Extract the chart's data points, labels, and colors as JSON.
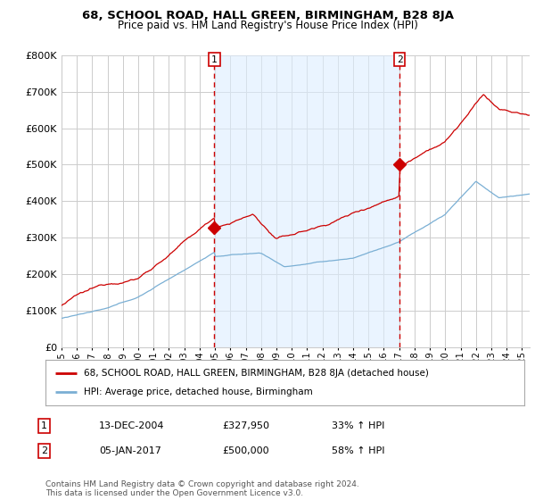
{
  "title": "68, SCHOOL ROAD, HALL GREEN, BIRMINGHAM, B28 8JA",
  "subtitle": "Price paid vs. HM Land Registry's House Price Index (HPI)",
  "ylim": [
    0,
    800000
  ],
  "yticks": [
    0,
    100000,
    200000,
    300000,
    400000,
    500000,
    600000,
    700000,
    800000
  ],
  "red_color": "#cc0000",
  "blue_color": "#7aafd4",
  "shade_color": "#ddeeff",
  "vline_color": "#cc0000",
  "grid_color": "#cccccc",
  "background_color": "#ffffff",
  "legend_label_red": "68, SCHOOL ROAD, HALL GREEN, BIRMINGHAM, B28 8JA (detached house)",
  "legend_label_blue": "HPI: Average price, detached house, Birmingham",
  "annotation1_label": "1",
  "annotation1_date": "13-DEC-2004",
  "annotation1_price": "£327,950",
  "annotation1_hpi": "33% ↑ HPI",
  "annotation2_label": "2",
  "annotation2_date": "05-JAN-2017",
  "annotation2_price": "£500,000",
  "annotation2_hpi": "58% ↑ HPI",
  "footer": "Contains HM Land Registry data © Crown copyright and database right 2024.\nThis data is licensed under the Open Government Licence v3.0.",
  "sale1_x": 2004.96,
  "sale1_y": 327950,
  "sale2_x": 2017.03,
  "sale2_y": 500000,
  "xmin": 1995,
  "xmax": 2025.5
}
